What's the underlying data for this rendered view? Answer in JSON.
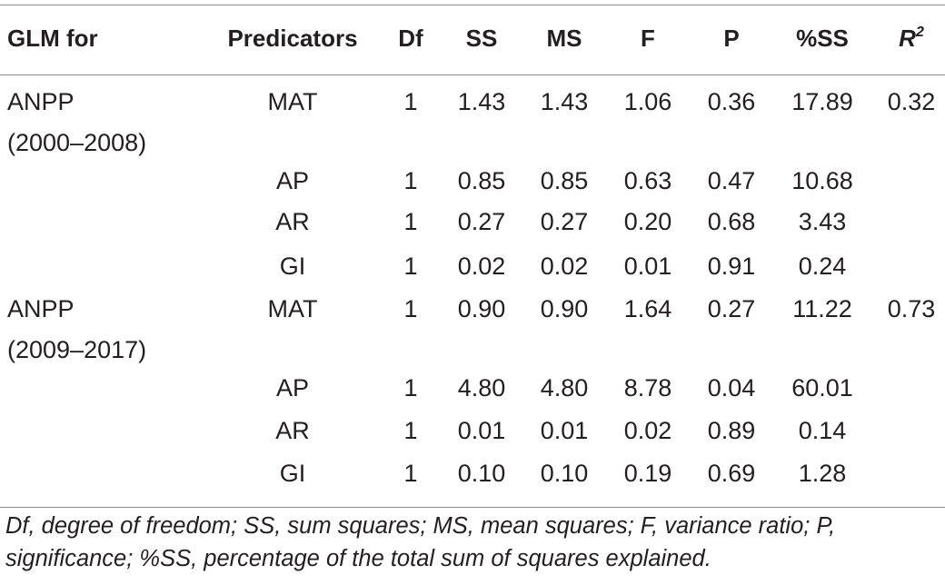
{
  "header": {
    "glm": "GLM for",
    "predicators": "Predicators",
    "df": "Df",
    "ss": "SS",
    "ms": "MS",
    "f": "F",
    "p": "P",
    "pct_ss": "%SS",
    "r2_base": "R",
    "r2_sup": "2"
  },
  "groups": [
    {
      "label_line1": "ANPP",
      "label_line2": "(2000–2008)",
      "r2": "0.32",
      "rows": [
        {
          "pred": "MAT",
          "df": "1",
          "ss": "1.43",
          "ms": "1.43",
          "f": "1.06",
          "p": "0.36",
          "pct": "17.89"
        },
        {
          "pred": "AP",
          "df": "1",
          "ss": "0.85",
          "ms": "0.85",
          "f": "0.63",
          "p": "0.47",
          "pct": "10.68"
        },
        {
          "pred": "AR",
          "df": "1",
          "ss": "0.27",
          "ms": "0.27",
          "f": "0.20",
          "p": "0.68",
          "pct": "3.43"
        },
        {
          "pred": "GI",
          "df": "1",
          "ss": "0.02",
          "ms": "0.02",
          "f": "0.01",
          "p": "0.91",
          "pct": "0.24"
        }
      ]
    },
    {
      "label_line1": "ANPP",
      "label_line2": "(2009–2017)",
      "r2": "0.73",
      "rows": [
        {
          "pred": "MAT",
          "df": "1",
          "ss": "0.90",
          "ms": "0.90",
          "f": "1.64",
          "p": "0.27",
          "pct": "11.22"
        },
        {
          "pred": "AP",
          "df": "1",
          "ss": "4.80",
          "ms": "4.80",
          "f": "8.78",
          "p": "0.04",
          "pct": "60.01"
        },
        {
          "pred": "AR",
          "df": "1",
          "ss": "0.01",
          "ms": "0.01",
          "f": "0.02",
          "p": "0.89",
          "pct": "0.14"
        },
        {
          "pred": "GI",
          "df": "1",
          "ss": "0.10",
          "ms": "0.10",
          "f": "0.19",
          "p": "0.69",
          "pct": "1.28"
        }
      ]
    }
  ],
  "footnote": "Df, degree of freedom; SS, sum squares; MS, mean squares; F, variance ratio; P, significance; %SS, percentage of the total sum of squares explained."
}
